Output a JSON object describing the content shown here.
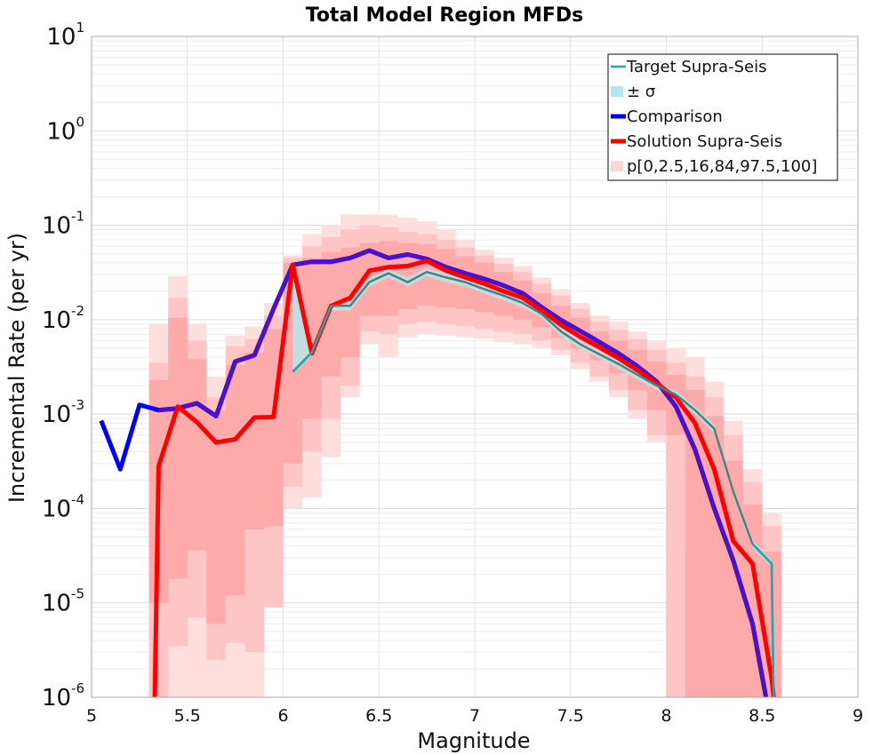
{
  "chart_data": {
    "type": "line",
    "title": "Total Model Region MFDs",
    "xlabel": "Magnitude",
    "ylabel": "Incremental Rate (per yr)",
    "xlim": [
      5,
      9
    ],
    "ylim": [
      1e-06,
      10
    ],
    "yscale": "log",
    "grid": true,
    "legend_position": "top-right",
    "x_ticks": [
      "5",
      "5.5",
      "6",
      "6.5",
      "7",
      "7.5",
      "8",
      "8.5",
      "9"
    ],
    "y_ticks": [
      {
        "base": "10",
        "exp": "1"
      },
      {
        "base": "10",
        "exp": "0"
      },
      {
        "base": "10",
        "exp": "-1"
      },
      {
        "base": "10",
        "exp": "-2"
      },
      {
        "base": "10",
        "exp": "-3"
      },
      {
        "base": "10",
        "exp": "-4"
      },
      {
        "base": "10",
        "exp": "-5"
      },
      {
        "base": "10",
        "exp": "-6"
      }
    ],
    "legend": [
      {
        "label": "Target Supra-Seis",
        "kind": "line-thin",
        "color": "#1fa8b0"
      },
      {
        "label": "± σ",
        "kind": "patch",
        "color": "#b5e6e9"
      },
      {
        "label": "Comparison",
        "kind": "line-thick",
        "color": "#0000ff"
      },
      {
        "label": "Solution Supra-Seis",
        "kind": "line-thick",
        "color": "#ff0000"
      },
      {
        "label": "p[0,2.5,16,84,97.5,100]",
        "kind": "patch",
        "color": "#ffd6d6"
      }
    ],
    "colors": {
      "target": "#1fa8b0",
      "sigma": "#b5e6e9",
      "comparison": "#0000ff",
      "solution": "#ff0000",
      "band_outer": "#ffdede",
      "band_mid": "#ffc4c4",
      "band_inner": "#ffaaaa",
      "target_overlap": "#4c8080",
      "comparison_overlap": "#4b10cc"
    },
    "series": [
      {
        "name": "Comparison",
        "x": [
          5.05,
          5.15,
          5.25,
          5.35,
          5.45,
          5.55,
          5.65,
          5.75,
          5.85,
          5.95,
          6.05,
          6.15,
          6.25,
          6.35,
          6.45,
          6.55,
          6.65,
          6.75,
          6.85,
          6.95,
          7.05,
          7.15,
          7.25,
          7.35,
          7.45,
          7.55,
          7.65,
          7.75,
          7.85,
          7.95,
          8.05,
          8.15,
          8.25,
          8.35,
          8.45,
          8.52
        ],
        "y": [
          0.00085,
          0.00026,
          0.00125,
          0.0011,
          0.00115,
          0.0013,
          0.00095,
          0.0036,
          0.0042,
          0.013,
          0.038,
          0.041,
          0.041,
          0.045,
          0.054,
          0.045,
          0.049,
          0.044,
          0.036,
          0.031,
          0.027,
          0.023,
          0.019,
          0.0135,
          0.0099,
          0.0076,
          0.0058,
          0.0044,
          0.0032,
          0.0022,
          0.0012,
          0.00042,
          0.0001,
          2.8e-05,
          6e-06,
          1e-06
        ]
      },
      {
        "name": "Solution Supra-Seis",
        "x": [
          5.33,
          5.35,
          5.45,
          5.55,
          5.65,
          5.75,
          5.85,
          5.95,
          6.05,
          6.15,
          6.25,
          6.35,
          6.45,
          6.55,
          6.65,
          6.75,
          6.85,
          6.95,
          7.05,
          7.15,
          7.25,
          7.35,
          7.45,
          7.55,
          7.65,
          7.75,
          7.85,
          7.95,
          8.05,
          8.15,
          8.25,
          8.35,
          8.45,
          8.55,
          8.56
        ],
        "y": [
          1e-06,
          0.00028,
          0.0012,
          0.00082,
          0.0005,
          0.00054,
          0.00092,
          0.00093,
          0.038,
          0.0044,
          0.014,
          0.017,
          0.033,
          0.036,
          0.037,
          0.042,
          0.033,
          0.028,
          0.024,
          0.02,
          0.017,
          0.0125,
          0.0088,
          0.0066,
          0.0051,
          0.0039,
          0.0029,
          0.0021,
          0.0015,
          0.0008,
          0.00026,
          4.5e-05,
          2.6e-05,
          1.6e-06,
          1e-06
        ]
      },
      {
        "name": "Target Supra-Seis",
        "x": [
          6.05,
          6.15,
          6.25,
          6.35,
          6.45,
          6.55,
          6.65,
          6.75,
          6.85,
          6.95,
          7.05,
          7.15,
          7.25,
          7.35,
          7.45,
          7.55,
          7.65,
          7.75,
          7.85,
          7.95,
          8.05,
          8.15,
          8.25,
          8.35,
          8.45,
          8.55,
          8.56
        ],
        "y": [
          0.0028,
          0.0045,
          0.014,
          0.014,
          0.025,
          0.031,
          0.025,
          0.032,
          0.028,
          0.025,
          0.021,
          0.018,
          0.015,
          0.0115,
          0.0075,
          0.0055,
          0.0043,
          0.0034,
          0.0026,
          0.002,
          0.0016,
          0.0011,
          0.0007,
          0.00015,
          4.2e-05,
          2.6e-05,
          1e-06
        ]
      }
    ],
    "sigma_band": {
      "x": [
        6.05,
        6.15,
        6.25,
        6.35,
        6.45,
        6.55,
        6.65,
        6.75,
        6.85,
        6.95,
        7.05,
        7.15,
        7.25,
        7.35,
        7.45,
        7.55,
        7.65,
        7.75,
        7.85,
        7.95,
        8.05,
        8.15,
        8.25,
        8.35,
        8.45,
        8.55
      ],
      "lower": [
        0.0028,
        0.0042,
        0.0125,
        0.0125,
        0.0225,
        0.028,
        0.0225,
        0.029,
        0.025,
        0.0225,
        0.019,
        0.016,
        0.0135,
        0.0104,
        0.0067,
        0.005,
        0.0039,
        0.003,
        0.0023,
        0.0018,
        0.00145,
        0.001,
        0.00063,
        0.000135,
        3.8e-05,
        2.4e-05
      ],
      "upper": [
        0.038,
        0.005,
        0.0155,
        0.0155,
        0.028,
        0.034,
        0.028,
        0.035,
        0.031,
        0.028,
        0.023,
        0.02,
        0.0165,
        0.0127,
        0.0083,
        0.006,
        0.0047,
        0.0037,
        0.0029,
        0.0022,
        0.00175,
        0.0012,
        0.00077,
        0.000165,
        4.6e-05,
        2.8e-05
      ]
    },
    "percentile_bands": [
      {
        "range": "p0-p100",
        "x": [
          5.35,
          5.45,
          5.55,
          5.65,
          5.75,
          5.85,
          5.95,
          6.05,
          6.15,
          6.25,
          6.35,
          6.45,
          6.55,
          6.65,
          6.75,
          6.85,
          6.95,
          7.05,
          7.15,
          7.25,
          7.35,
          7.45,
          7.55,
          7.65,
          7.75,
          7.85,
          7.95,
          8.05,
          8.15,
          8.25,
          8.35,
          8.45,
          8.55
        ],
        "lower": [
          1e-06,
          1e-06,
          1e-06,
          1e-06,
          1e-06,
          1e-06,
          1e-05,
          0.0001,
          0.00013,
          0.00035,
          0.0015,
          0.0055,
          0.004,
          0.0065,
          0.007,
          0.0068,
          0.0065,
          0.0063,
          0.0058,
          0.0055,
          0.005,
          0.0042,
          0.003,
          0.0022,
          0.0015,
          0.0009,
          0.0005,
          1e-06,
          1e-06,
          1e-06,
          1e-06,
          1e-06,
          1e-06
        ],
        "upper": [
          0.009,
          0.029,
          0.009,
          0.0025,
          0.0068,
          0.0085,
          0.015,
          0.048,
          0.08,
          0.1,
          0.13,
          0.13,
          0.13,
          0.12,
          0.11,
          0.09,
          0.07,
          0.055,
          0.045,
          0.037,
          0.028,
          0.021,
          0.015,
          0.011,
          0.0095,
          0.0075,
          0.006,
          0.005,
          0.004,
          0.0022,
          0.00085,
          0.00026,
          9e-05
        ]
      },
      {
        "range": "p2.5-p97.5",
        "x": [
          5.35,
          5.45,
          5.55,
          5.65,
          5.75,
          5.85,
          5.95,
          6.05,
          6.15,
          6.25,
          6.35,
          6.45,
          6.55,
          6.65,
          6.75,
          6.85,
          6.95,
          7.05,
          7.15,
          7.25,
          7.35,
          7.45,
          7.55,
          7.65,
          7.75,
          7.85,
          7.95,
          8.05,
          8.15,
          8.25,
          8.35,
          8.45,
          8.55
        ],
        "lower": [
          1e-06,
          3.5e-06,
          7e-06,
          2.5e-06,
          3.8e-06,
          3e-06,
          9e-06,
          0.00017,
          0.0004,
          0.0009,
          0.002,
          0.0075,
          0.007,
          0.009,
          0.0095,
          0.009,
          0.0085,
          0.008,
          0.0075,
          0.007,
          0.006,
          0.0048,
          0.0035,
          0.0025,
          0.0018,
          0.0011,
          0.0006,
          1e-06,
          1e-06,
          1e-06,
          1e-06,
          1e-06,
          1e-06
        ],
        "upper": [
          0.0035,
          0.017,
          0.006,
          0.0015,
          0.0052,
          0.0062,
          0.011,
          0.045,
          0.06,
          0.075,
          0.09,
          0.1,
          0.095,
          0.085,
          0.08,
          0.07,
          0.058,
          0.048,
          0.039,
          0.032,
          0.024,
          0.018,
          0.013,
          0.0095,
          0.0078,
          0.0062,
          0.0048,
          0.0035,
          0.0025,
          0.0015,
          0.0006,
          0.00019,
          6.5e-05
        ]
      },
      {
        "range": "p16-p84",
        "x": [
          5.35,
          5.45,
          5.55,
          5.65,
          5.75,
          5.85,
          5.95,
          6.05,
          6.15,
          6.25,
          6.35,
          6.45,
          6.55,
          6.65,
          6.75,
          6.85,
          6.95,
          7.05,
          7.15,
          7.25,
          7.35,
          7.45,
          7.55,
          7.65,
          7.75,
          7.85,
          7.95,
          8.05,
          8.15,
          8.25,
          8.35,
          8.45,
          8.55
        ],
        "lower": [
          1e-05,
          1.8e-05,
          3.6e-05,
          6e-06,
          1.2e-05,
          6e-05,
          6.5e-05,
          0.0003,
          0.0009,
          0.0025,
          0.004,
          0.011,
          0.011,
          0.013,
          0.014,
          0.0135,
          0.013,
          0.012,
          0.011,
          0.01,
          0.0083,
          0.0064,
          0.0049,
          0.0037,
          0.0027,
          0.0018,
          0.0011,
          0.0006,
          1e-06,
          1e-06,
          1e-06,
          1e-06,
          1e-06
        ],
        "upper": [
          0.0023,
          0.0105,
          0.0038,
          0.0011,
          0.0033,
          0.0045,
          0.008,
          0.04,
          0.045,
          0.052,
          0.058,
          0.065,
          0.068,
          0.065,
          0.063,
          0.056,
          0.047,
          0.04,
          0.032,
          0.026,
          0.019,
          0.014,
          0.0105,
          0.0075,
          0.006,
          0.0048,
          0.0036,
          0.0026,
          0.0018,
          0.00095,
          0.00032,
          0.00011,
          3.5e-05
        ]
      }
    ]
  }
}
